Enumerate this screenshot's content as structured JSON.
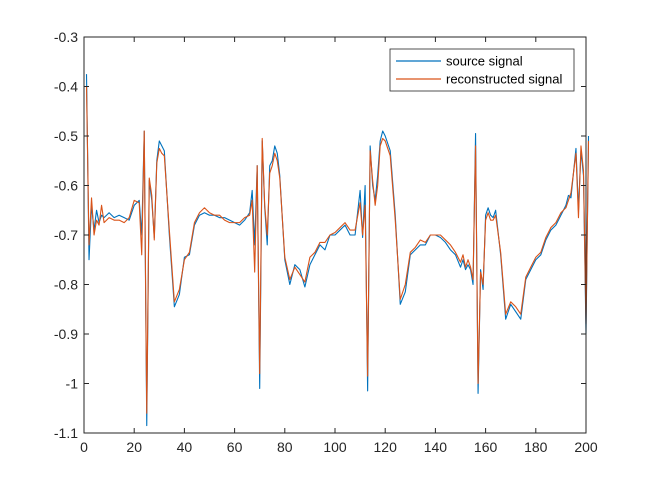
{
  "chart_data": {
    "type": "line",
    "title": "",
    "xlabel": "",
    "ylabel": "",
    "xlim": [
      0,
      200
    ],
    "ylim": [
      -1.1,
      -0.3
    ],
    "xticks": [
      0,
      20,
      40,
      60,
      80,
      100,
      120,
      140,
      160,
      180,
      200
    ],
    "yticks": [
      -1.1,
      -1,
      -0.9,
      -0.8,
      -0.7,
      -0.6,
      -0.5,
      -0.4,
      -0.3
    ],
    "xtick_labels": [
      "0",
      "20",
      "40",
      "60",
      "80",
      "100",
      "120",
      "140",
      "160",
      "180",
      "200"
    ],
    "ytick_labels": [
      "-1.1",
      "-1",
      "-0.9",
      "-0.8",
      "-0.7",
      "-0.6",
      "-0.5",
      "-0.4",
      "-0.3"
    ],
    "grid": false,
    "legend_position": "top-right",
    "series": [
      {
        "name": "source signal",
        "color": "#0072BD",
        "points": [
          [
            1,
            -0.375
          ],
          [
            2,
            -0.75
          ],
          [
            3,
            -0.64
          ],
          [
            4,
            -0.69
          ],
          [
            5,
            -0.65
          ],
          [
            6,
            -0.675
          ],
          [
            7,
            -0.66
          ],
          [
            8,
            -0.665
          ],
          [
            10,
            -0.655
          ],
          [
            12,
            -0.665
          ],
          [
            14,
            -0.66
          ],
          [
            16,
            -0.665
          ],
          [
            18,
            -0.67
          ],
          [
            20,
            -0.64
          ],
          [
            22,
            -0.63
          ],
          [
            23,
            -0.7
          ],
          [
            24,
            -0.49
          ],
          [
            25,
            -1.085
          ],
          [
            26,
            -0.59
          ],
          [
            27,
            -0.63
          ],
          [
            28,
            -0.705
          ],
          [
            29,
            -0.55
          ],
          [
            30,
            -0.51
          ],
          [
            31,
            -0.52
          ],
          [
            32,
            -0.53
          ],
          [
            34,
            -0.7
          ],
          [
            36,
            -0.845
          ],
          [
            38,
            -0.82
          ],
          [
            40,
            -0.745
          ],
          [
            42,
            -0.74
          ],
          [
            44,
            -0.68
          ],
          [
            46,
            -0.66
          ],
          [
            48,
            -0.655
          ],
          [
            50,
            -0.66
          ],
          [
            52,
            -0.66
          ],
          [
            54,
            -0.665
          ],
          [
            56,
            -0.665
          ],
          [
            58,
            -0.67
          ],
          [
            60,
            -0.675
          ],
          [
            62,
            -0.68
          ],
          [
            64,
            -0.67
          ],
          [
            66,
            -0.655
          ],
          [
            67,
            -0.61
          ],
          [
            68,
            -0.72
          ],
          [
            69,
            -0.56
          ],
          [
            70,
            -1.01
          ],
          [
            71,
            -0.51
          ],
          [
            72,
            -0.645
          ],
          [
            73,
            -0.72
          ],
          [
            74,
            -0.56
          ],
          [
            75,
            -0.55
          ],
          [
            76,
            -0.52
          ],
          [
            77,
            -0.535
          ],
          [
            78,
            -0.58
          ],
          [
            80,
            -0.75
          ],
          [
            82,
            -0.8
          ],
          [
            84,
            -0.76
          ],
          [
            86,
            -0.77
          ],
          [
            88,
            -0.805
          ],
          [
            90,
            -0.76
          ],
          [
            92,
            -0.74
          ],
          [
            94,
            -0.72
          ],
          [
            96,
            -0.73
          ],
          [
            98,
            -0.7
          ],
          [
            100,
            -0.7
          ],
          [
            102,
            -0.69
          ],
          [
            104,
            -0.68
          ],
          [
            106,
            -0.7
          ],
          [
            108,
            -0.7
          ],
          [
            110,
            -0.61
          ],
          [
            111,
            -0.705
          ],
          [
            112,
            -0.6
          ],
          [
            113,
            -1.015
          ],
          [
            114,
            -0.52
          ],
          [
            115,
            -0.6
          ],
          [
            116,
            -0.63
          ],
          [
            117,
            -0.58
          ],
          [
            118,
            -0.51
          ],
          [
            119,
            -0.49
          ],
          [
            120,
            -0.5
          ],
          [
            122,
            -0.53
          ],
          [
            124,
            -0.66
          ],
          [
            126,
            -0.84
          ],
          [
            128,
            -0.815
          ],
          [
            130,
            -0.74
          ],
          [
            132,
            -0.73
          ],
          [
            134,
            -0.72
          ],
          [
            136,
            -0.72
          ],
          [
            138,
            -0.7
          ],
          [
            140,
            -0.7
          ],
          [
            142,
            -0.705
          ],
          [
            144,
            -0.715
          ],
          [
            146,
            -0.73
          ],
          [
            148,
            -0.74
          ],
          [
            150,
            -0.765
          ],
          [
            151,
            -0.75
          ],
          [
            152,
            -0.77
          ],
          [
            153,
            -0.76
          ],
          [
            154,
            -0.77
          ],
          [
            155,
            -0.8
          ],
          [
            156,
            -0.495
          ],
          [
            157,
            -1.02
          ],
          [
            158,
            -0.77
          ],
          [
            159,
            -0.81
          ],
          [
            160,
            -0.66
          ],
          [
            161,
            -0.645
          ],
          [
            162,
            -0.66
          ],
          [
            163,
            -0.665
          ],
          [
            164,
            -0.65
          ],
          [
            166,
            -0.74
          ],
          [
            168,
            -0.87
          ],
          [
            170,
            -0.84
          ],
          [
            172,
            -0.855
          ],
          [
            174,
            -0.87
          ],
          [
            176,
            -0.79
          ],
          [
            178,
            -0.77
          ],
          [
            180,
            -0.75
          ],
          [
            182,
            -0.74
          ],
          [
            184,
            -0.71
          ],
          [
            186,
            -0.69
          ],
          [
            188,
            -0.68
          ],
          [
            190,
            -0.66
          ],
          [
            192,
            -0.64
          ],
          [
            193,
            -0.62
          ],
          [
            194,
            -0.625
          ],
          [
            196,
            -0.525
          ],
          [
            197,
            -0.65
          ],
          [
            198,
            -0.53
          ],
          [
            199,
            -0.58
          ],
          [
            200,
            -0.9
          ],
          [
            201,
            -0.5
          ]
        ]
      },
      {
        "name": "reconstructed signal",
        "color": "#D95319",
        "points": [
          [
            1,
            -0.4
          ],
          [
            2,
            -0.72
          ],
          [
            3,
            -0.625
          ],
          [
            4,
            -0.7
          ],
          [
            5,
            -0.67
          ],
          [
            6,
            -0.68
          ],
          [
            7,
            -0.64
          ],
          [
            8,
            -0.675
          ],
          [
            10,
            -0.665
          ],
          [
            12,
            -0.67
          ],
          [
            14,
            -0.67
          ],
          [
            16,
            -0.675
          ],
          [
            18,
            -0.665
          ],
          [
            20,
            -0.63
          ],
          [
            22,
            -0.635
          ],
          [
            23,
            -0.74
          ],
          [
            24,
            -0.49
          ],
          [
            25,
            -1.06
          ],
          [
            26,
            -0.585
          ],
          [
            27,
            -0.62
          ],
          [
            28,
            -0.71
          ],
          [
            29,
            -0.555
          ],
          [
            30,
            -0.525
          ],
          [
            31,
            -0.535
          ],
          [
            32,
            -0.54
          ],
          [
            34,
            -0.69
          ],
          [
            36,
            -0.835
          ],
          [
            38,
            -0.81
          ],
          [
            40,
            -0.75
          ],
          [
            42,
            -0.735
          ],
          [
            44,
            -0.675
          ],
          [
            46,
            -0.655
          ],
          [
            48,
            -0.645
          ],
          [
            50,
            -0.655
          ],
          [
            52,
            -0.66
          ],
          [
            54,
            -0.66
          ],
          [
            56,
            -0.67
          ],
          [
            58,
            -0.675
          ],
          [
            60,
            -0.675
          ],
          [
            62,
            -0.675
          ],
          [
            64,
            -0.665
          ],
          [
            66,
            -0.66
          ],
          [
            67,
            -0.63
          ],
          [
            68,
            -0.775
          ],
          [
            69,
            -0.56
          ],
          [
            70,
            -0.98
          ],
          [
            71,
            -0.505
          ],
          [
            72,
            -0.64
          ],
          [
            73,
            -0.7
          ],
          [
            74,
            -0.575
          ],
          [
            75,
            -0.56
          ],
          [
            76,
            -0.535
          ],
          [
            77,
            -0.55
          ],
          [
            78,
            -0.585
          ],
          [
            80,
            -0.745
          ],
          [
            82,
            -0.79
          ],
          [
            84,
            -0.765
          ],
          [
            86,
            -0.78
          ],
          [
            88,
            -0.795
          ],
          [
            90,
            -0.745
          ],
          [
            92,
            -0.735
          ],
          [
            94,
            -0.715
          ],
          [
            96,
            -0.715
          ],
          [
            98,
            -0.7
          ],
          [
            100,
            -0.695
          ],
          [
            102,
            -0.685
          ],
          [
            104,
            -0.675
          ],
          [
            106,
            -0.69
          ],
          [
            108,
            -0.69
          ],
          [
            110,
            -0.635
          ],
          [
            111,
            -0.7
          ],
          [
            112,
            -0.64
          ],
          [
            113,
            -0.985
          ],
          [
            114,
            -0.53
          ],
          [
            115,
            -0.59
          ],
          [
            116,
            -0.64
          ],
          [
            117,
            -0.6
          ],
          [
            118,
            -0.52
          ],
          [
            119,
            -0.505
          ],
          [
            120,
            -0.51
          ],
          [
            122,
            -0.54
          ],
          [
            124,
            -0.67
          ],
          [
            126,
            -0.83
          ],
          [
            128,
            -0.8
          ],
          [
            130,
            -0.735
          ],
          [
            132,
            -0.725
          ],
          [
            134,
            -0.71
          ],
          [
            136,
            -0.715
          ],
          [
            138,
            -0.7
          ],
          [
            140,
            -0.7
          ],
          [
            142,
            -0.7
          ],
          [
            144,
            -0.71
          ],
          [
            146,
            -0.72
          ],
          [
            148,
            -0.735
          ],
          [
            150,
            -0.755
          ],
          [
            151,
            -0.74
          ],
          [
            152,
            -0.765
          ],
          [
            153,
            -0.75
          ],
          [
            154,
            -0.765
          ],
          [
            155,
            -0.79
          ],
          [
            156,
            -0.52
          ],
          [
            157,
            -1.0
          ],
          [
            158,
            -0.775
          ],
          [
            159,
            -0.8
          ],
          [
            160,
            -0.67
          ],
          [
            161,
            -0.655
          ],
          [
            162,
            -0.67
          ],
          [
            163,
            -0.67
          ],
          [
            164,
            -0.66
          ],
          [
            166,
            -0.735
          ],
          [
            168,
            -0.86
          ],
          [
            170,
            -0.835
          ],
          [
            172,
            -0.845
          ],
          [
            174,
            -0.86
          ],
          [
            176,
            -0.785
          ],
          [
            178,
            -0.765
          ],
          [
            180,
            -0.745
          ],
          [
            182,
            -0.735
          ],
          [
            184,
            -0.705
          ],
          [
            186,
            -0.685
          ],
          [
            188,
            -0.675
          ],
          [
            190,
            -0.655
          ],
          [
            192,
            -0.645
          ],
          [
            193,
            -0.63
          ],
          [
            194,
            -0.615
          ],
          [
            196,
            -0.535
          ],
          [
            197,
            -0.665
          ],
          [
            198,
            -0.52
          ],
          [
            199,
            -0.57
          ],
          [
            200,
            -0.88
          ],
          [
            201,
            -0.51
          ]
        ]
      }
    ]
  }
}
